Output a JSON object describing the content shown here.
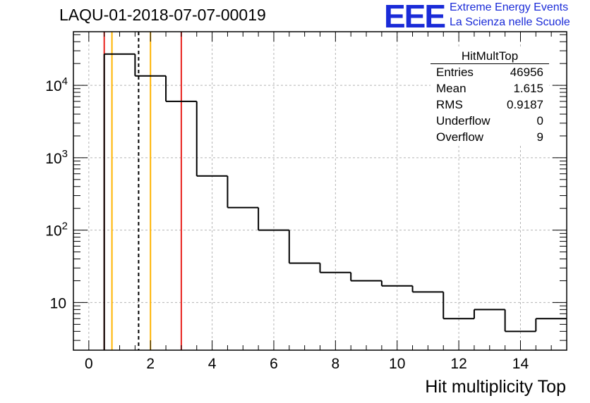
{
  "page": {
    "title": "LAQU-01-2018-07-07-00019",
    "logo_text": "EEE",
    "logo_line1": "Extreme Energy Events",
    "logo_line2": "La Scienza nelle Scuole"
  },
  "stats": {
    "name": "HitMultTop",
    "rows": [
      {
        "label": "Entries",
        "value": "46956"
      },
      {
        "label": "Mean",
        "value": "1.615"
      },
      {
        "label": "RMS",
        "value": "0.9187"
      },
      {
        "label": "Underflow",
        "value": "0"
      },
      {
        "label": "Overflow",
        "value": "9"
      }
    ]
  },
  "chart_data": {
    "type": "bar",
    "style": "step-histogram",
    "title": "LAQU-01-2018-07-07-00019",
    "xlabel": "Hit multiplicity Top",
    "ylabel": "",
    "xlim": [
      -0.5,
      15.5
    ],
    "ylim": [
      2.2,
      55000
    ],
    "yscale": "log",
    "grid": true,
    "bin_edges": [
      -0.5,
      0.5,
      1.5,
      2.5,
      3.5,
      4.5,
      5.5,
      6.5,
      7.5,
      8.5,
      9.5,
      10.5,
      11.5,
      12.5,
      13.5,
      14.5,
      15.5
    ],
    "values": [
      0,
      27000,
      13500,
      6000,
      560,
      205,
      100,
      35,
      26,
      20,
      17,
      14,
      6,
      8,
      4,
      6
    ],
    "x_ticks": [
      0,
      2,
      4,
      6,
      8,
      10,
      12,
      14
    ],
    "x_tick_labels": [
      "0",
      "2",
      "4",
      "6",
      "8",
      "10",
      "12",
      "14"
    ],
    "y_ticks": [
      10,
      100,
      1000,
      10000
    ],
    "y_tick_labels": [
      {
        "base": "10",
        "exp": ""
      },
      {
        "base": "10",
        "exp": "2"
      },
      {
        "base": "10",
        "exp": "3"
      },
      {
        "base": "10",
        "exp": "4"
      }
    ],
    "vlines": [
      {
        "x": 0.5,
        "color": "#e8211c",
        "style": "solid"
      },
      {
        "x": 0.75,
        "color": "#ffb400",
        "style": "solid"
      },
      {
        "x": 1.615,
        "color": "#000000",
        "style": "dashed"
      },
      {
        "x": 2.0,
        "color": "#ffb400",
        "style": "solid"
      },
      {
        "x": 3.0,
        "color": "#e8211c",
        "style": "solid"
      }
    ]
  }
}
